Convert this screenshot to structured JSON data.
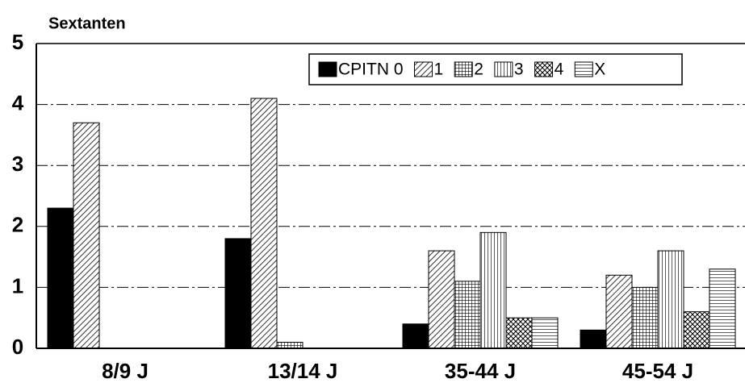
{
  "chart_data": {
    "type": "bar",
    "y_label": "Sextanten",
    "categories": [
      "8/9 J",
      "13/14 J",
      "35-44 J",
      "45-54 J"
    ],
    "series": [
      {
        "name": "CPITN 0",
        "color": "#000000",
        "pattern": "solid",
        "values": [
          2.3,
          1.8,
          0.4,
          0.3
        ]
      },
      {
        "name": "1",
        "color": "#000000",
        "pattern": "diagonal",
        "values": [
          3.7,
          4.1,
          1.6,
          1.2
        ]
      },
      {
        "name": "2",
        "color": "#000000",
        "pattern": "grid",
        "values": [
          0,
          0.1,
          1.1,
          1.0
        ]
      },
      {
        "name": "3",
        "color": "#000000",
        "pattern": "vertical",
        "values": [
          0,
          0,
          1.9,
          1.6
        ]
      },
      {
        "name": "4",
        "color": "#000000",
        "pattern": "crosshatch",
        "values": [
          0,
          0,
          0.5,
          0.6
        ]
      },
      {
        "name": "X",
        "color": "#000000",
        "pattern": "horizontal",
        "values": [
          0,
          0,
          0.5,
          1.3
        ]
      }
    ],
    "ylim": [
      0,
      5
    ],
    "yticks": [
      0,
      1,
      2,
      3,
      4,
      5
    ],
    "grid": true,
    "legend": "top-right"
  }
}
